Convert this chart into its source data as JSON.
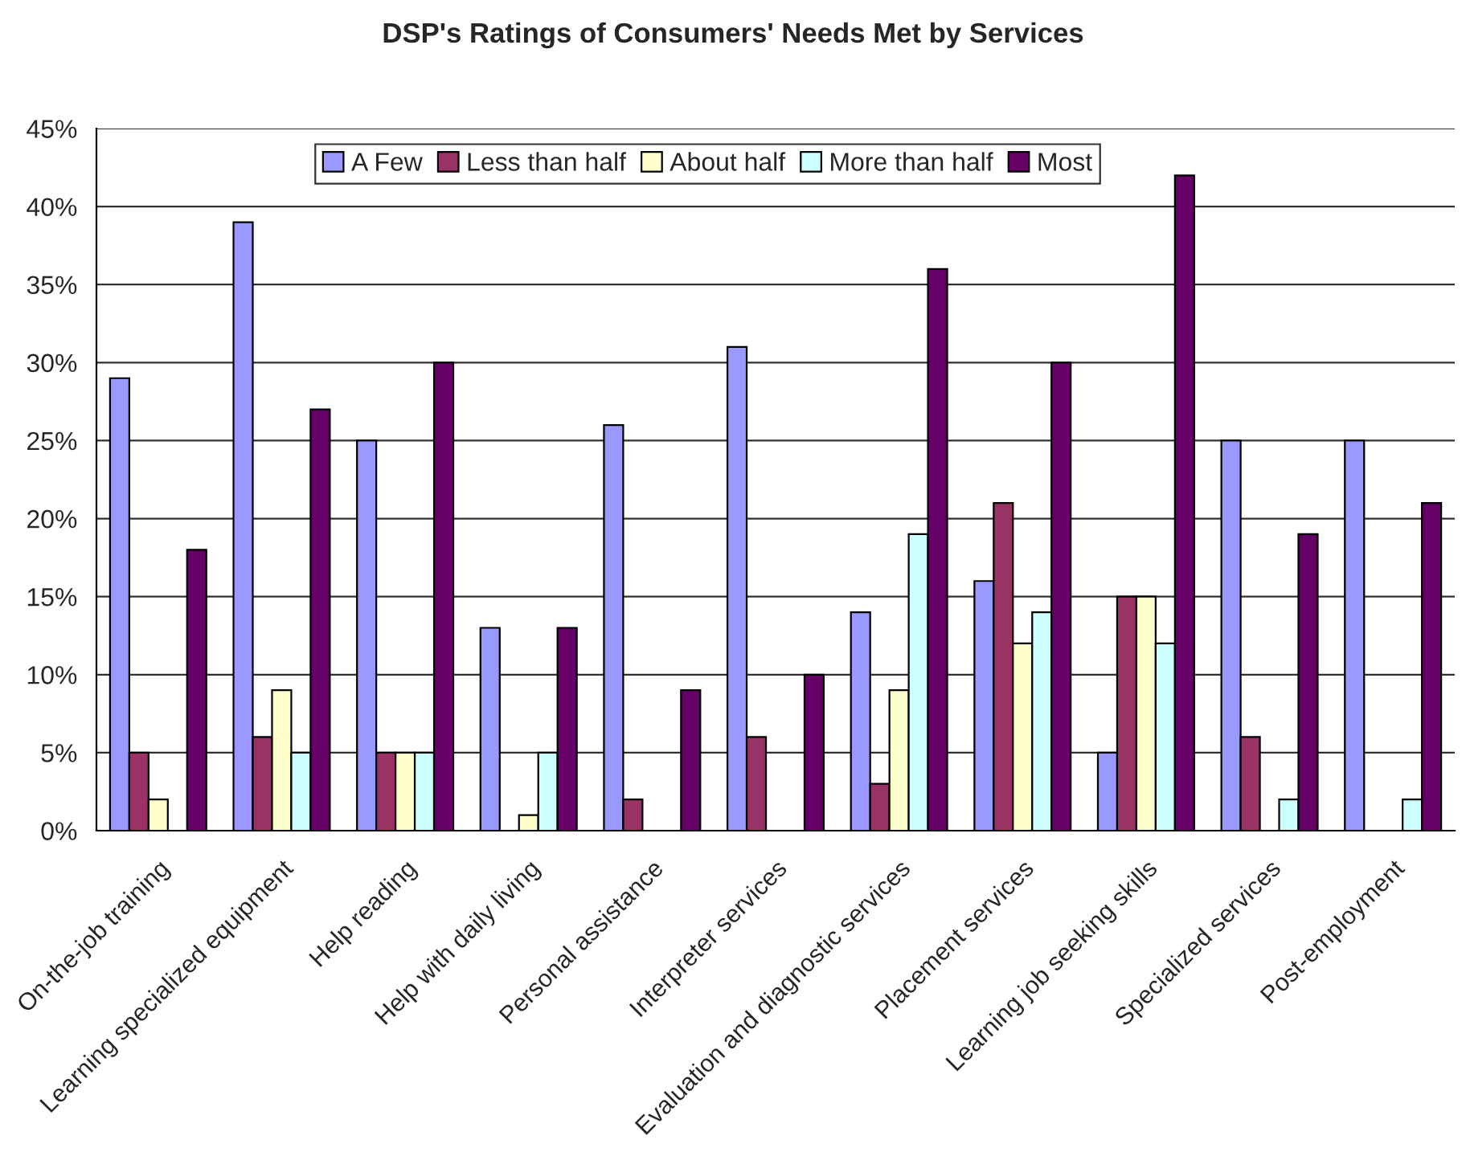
{
  "chart_data": {
    "type": "bar",
    "title": "DSP's Ratings of Consumers' Needs Met by Services",
    "categories": [
      "On-the-job training",
      "Learning specialized equipment",
      "Help reading",
      "Help with daily living",
      "Personal assistance",
      "Interpreter services",
      "Evaluation and diagnostic services",
      "Placement services",
      "Learning job seeking skills",
      "Specialized services",
      "Post-employment"
    ],
    "series": [
      {
        "name": "A Few",
        "color": "#9999ff",
        "values": [
          29,
          39,
          25,
          13,
          26,
          31,
          14,
          16,
          5,
          25,
          25
        ]
      },
      {
        "name": "Less than half",
        "color": "#993366",
        "values": [
          5,
          6,
          5,
          null,
          2,
          6,
          3,
          21,
          15,
          6,
          null
        ]
      },
      {
        "name": "About half",
        "color": "#ffffcc",
        "values": [
          2,
          9,
          5,
          1,
          null,
          null,
          9,
          12,
          15,
          null,
          null
        ]
      },
      {
        "name": "More than half",
        "color": "#ccffff",
        "values": [
          null,
          5,
          5,
          5,
          null,
          null,
          19,
          14,
          12,
          2,
          2
        ]
      },
      {
        "name": "Most",
        "color": "#660066",
        "values": [
          18,
          27,
          30,
          13,
          9,
          10,
          36,
          30,
          42,
          19,
          21
        ]
      }
    ],
    "ylim": [
      0,
      45
    ],
    "yticks": [
      {
        "value": 0,
        "label": "0%"
      },
      {
        "value": 5,
        "label": "5%"
      },
      {
        "value": 10,
        "label": "10%"
      },
      {
        "value": 15,
        "label": "15%"
      },
      {
        "value": 20,
        "label": "20%"
      },
      {
        "value": 25,
        "label": "25%"
      },
      {
        "value": 30,
        "label": "30%"
      },
      {
        "value": 35,
        "label": "35%"
      },
      {
        "value": 40,
        "label": "40%"
      },
      {
        "value": 45,
        "label": "45%"
      }
    ],
    "grid": "y",
    "legend": "top"
  }
}
